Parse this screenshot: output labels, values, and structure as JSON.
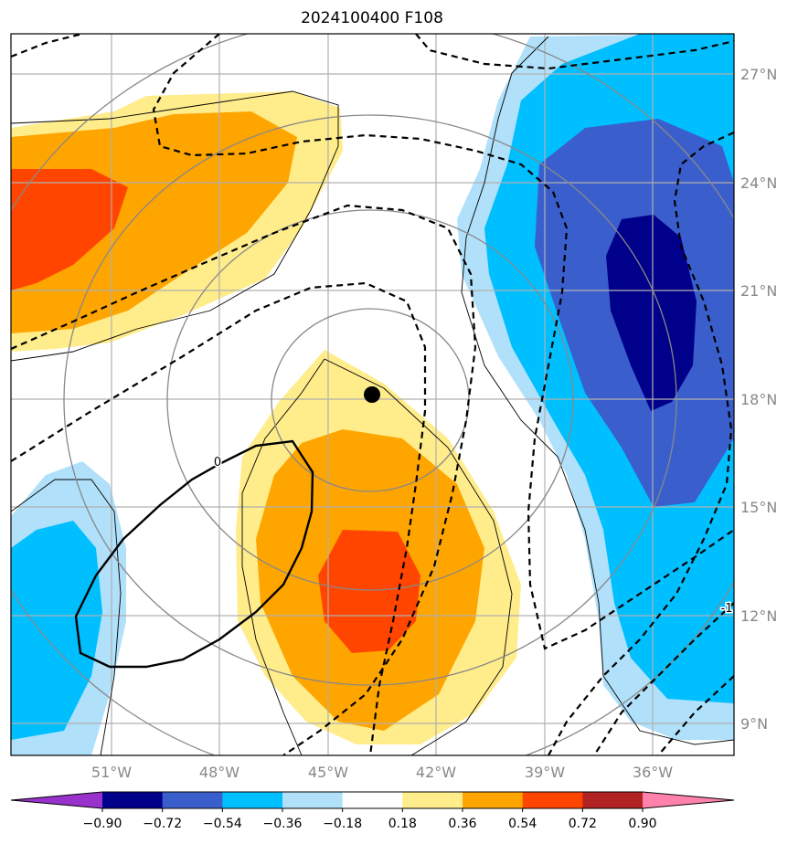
{
  "chart_data": {
    "type": "heatmap",
    "title": "2024100400 F108",
    "x_ticks": [
      "51°W",
      "48°W",
      "45°W",
      "42°W",
      "39°W",
      "36°W"
    ],
    "x_tick_values": [
      -51,
      -48,
      -45,
      -42,
      -39,
      -36
    ],
    "y_ticks": [
      "27°N",
      "24°N",
      "21°N",
      "18°N",
      "15°N",
      "12°N",
      "9°N"
    ],
    "y_tick_values": [
      27,
      24,
      21,
      18,
      15,
      12,
      9
    ],
    "xlim": [
      -53.7,
      -33.7
    ],
    "ylim": [
      8.2,
      28.2
    ],
    "grid": true,
    "colorbar": {
      "tick_labels": [
        "−0.90",
        "−0.72",
        "−0.54",
        "−0.36",
        "−0.18",
        "0.18",
        "0.36",
        "0.54",
        "0.72",
        "0.90"
      ],
      "colors": [
        "#9932cc",
        "#00008b",
        "#3a5fcd",
        "#00bfff",
        "#b0e0fa",
        "#ffffff",
        "#ffec8b",
        "#ffa500",
        "#ff4500",
        "#b22222",
        "#ff82ab"
      ],
      "extend": "both"
    },
    "contour_labels": [
      "0",
      "-1"
    ],
    "storm_center": {
      "lon": -43.8,
      "lat": 18.1
    }
  }
}
